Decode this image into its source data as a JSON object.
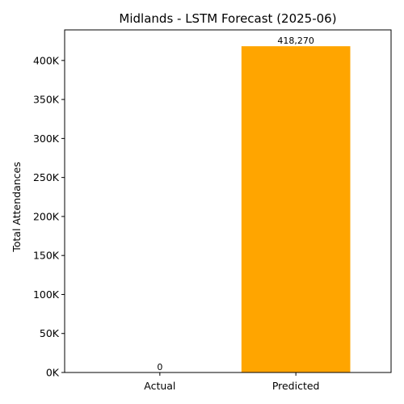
{
  "chart_data": {
    "type": "bar",
    "title": "Midlands - LSTM Forecast (2025-06)",
    "xlabel": "",
    "ylabel": "Total Attendances",
    "categories": [
      "Actual",
      "Predicted"
    ],
    "values": [
      0,
      418270
    ],
    "data_labels": [
      "0",
      "418,270"
    ],
    "bar_colors": [
      "#1f77b4",
      "#ffa500"
    ],
    "ylim": [
      0,
      439184
    ],
    "yticks": [
      0,
      50000,
      100000,
      150000,
      200000,
      250000,
      300000,
      350000,
      400000
    ],
    "ytick_labels": [
      "0K",
      "50K",
      "100K",
      "150K",
      "200K",
      "250K",
      "300K",
      "350K",
      "400K"
    ],
    "grid": false,
    "legend": "none"
  }
}
